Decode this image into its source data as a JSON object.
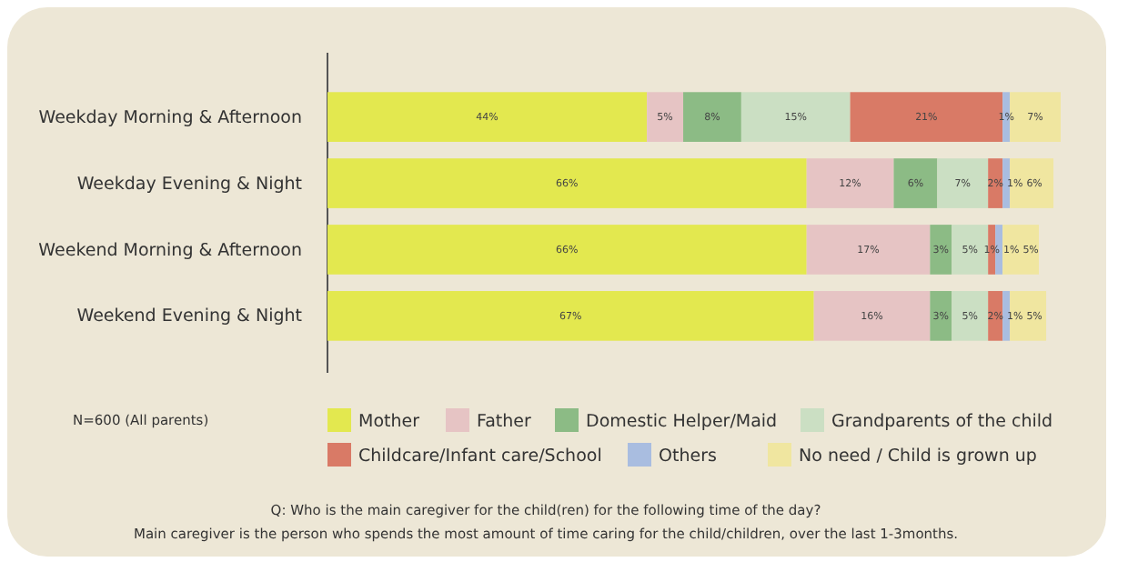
{
  "chart_data": {
    "type": "bar",
    "orientation": "horizontal",
    "stacked": true,
    "legend": "bottom",
    "grid": false,
    "tick_labels": "y",
    "categories": [
      "Weekday Morning & Afternoon",
      "Weekday Evening & Night",
      "Weekend Morning & Afternoon",
      "Weekend Evening & Night"
    ],
    "series": [
      {
        "name": "Mother",
        "color": "#e3e84f",
        "values": [
          44,
          66,
          66,
          67
        ],
        "value_labels": [
          "44%",
          "66%",
          "66%",
          "67%"
        ]
      },
      {
        "name": "Father",
        "color": "#e6c4c4",
        "values": [
          5,
          12,
          17,
          16
        ],
        "value_labels": [
          "5%",
          "12%",
          "17%",
          "16%"
        ]
      },
      {
        "name": "Domestic Helper/Maid",
        "color": "#8cbb85",
        "values": [
          8,
          6,
          3,
          3
        ],
        "value_labels": [
          "8%",
          "6%",
          "3%",
          "3%"
        ]
      },
      {
        "name": "Grandparents of the child",
        "color": "#cbdfc3",
        "values": [
          15,
          7,
          5,
          5
        ],
        "value_labels": [
          "15%",
          "7%",
          "5%",
          "5%"
        ]
      },
      {
        "name": "Childcare/Infant care/School",
        "color": "#d97a66",
        "values": [
          21,
          2,
          1,
          2
        ],
        "value_labels": [
          "21%",
          "2%",
          "1%",
          "2%"
        ]
      },
      {
        "name": "Others",
        "color": "#a9bde0",
        "values": [
          1,
          1,
          1,
          1
        ],
        "value_labels": [
          "1%",
          "1%",
          "1%",
          "1%"
        ]
      },
      {
        "name": "No need / Child is grown up",
        "color": "#f0e6a0",
        "values": [
          7,
          6,
          5,
          5
        ],
        "value_labels": [
          "7%",
          "6%",
          "5%",
          "5%"
        ]
      }
    ],
    "annotations": [
      "N=600 (All parents)",
      "Q: Who is the main caregiver for the child(ren) for the following time of the day?",
      "Main caregiver is the person who spends the most amount of time caring for the child/children, over the last 1-3months."
    ]
  }
}
